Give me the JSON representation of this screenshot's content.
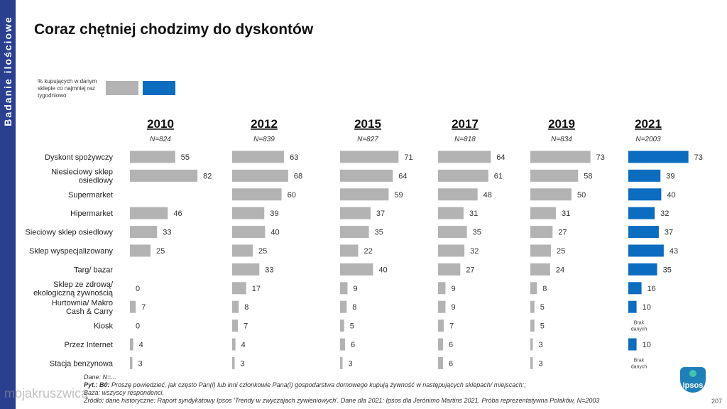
{
  "sidebar": {
    "label": "Badanie ilościowe"
  },
  "title": "Coraz chętniej chodzimy do dyskontów",
  "legend": {
    "text": "% kupujących w danym sklepie  co najmniej raz tygodniowo",
    "grey_color": "#b3b3b3",
    "blue_color": "#0b6cc0"
  },
  "footer": {
    "line1": "Dane: N=...",
    "line2_label": "Pyt.: B0:",
    "line2": " Proszę powiedzieć, jak często Pan(i) lub inni członkowie Pana(i) gospodarstwa domowego kupują żywność w następujących sklepach/ miejscach:;",
    "line3": "Baza: wszyscy respondenci,",
    "line4": "Źródło: dane historyczne: Raport syndykatowy Ipsos 'Trendy w zwyczajach żywieniowych'. Dane dla 2021: Ipsos dla Jerónimo Martins 2021. Próba reprezentatywna Polaków, N=2003"
  },
  "logo": "Ipsos",
  "page_number": "207",
  "watermark": "mojakruszwica",
  "chart_data": {
    "type": "bar",
    "title": "Coraz chętniej chodzimy do dyskontów",
    "ylabel": "% kupujących w danym sklepie  co najmniej raz tygodniowo",
    "categories": [
      "Dyskont spożywczy",
      "Niesieciowy sklep osiedlowy",
      "Supermarket",
      "Hipermarket",
      "Sieciowy sklep osiedlowy",
      "Sklep wyspecjalizowany",
      "Targ/ bazar",
      "Sklep ze zdrową/ ekologiczną żywnością",
      "Hurtownia/ Makro Cash & Carry",
      "Kiosk",
      "Przez Internet",
      "Stacja benzynowa"
    ],
    "missing_label": "Brak danych",
    "series": [
      {
        "name": "2010",
        "n": "N=824",
        "color": "#b3b3b3",
        "values": [
          55,
          82,
          null,
          46,
          33,
          25,
          null,
          0,
          7,
          0,
          4,
          3
        ]
      },
      {
        "name": "2012",
        "n": "N=839",
        "color": "#b3b3b3",
        "values": [
          63,
          68,
          60,
          39,
          40,
          25,
          33,
          17,
          8,
          7,
          4,
          3
        ]
      },
      {
        "name": "2015",
        "n": "N=827",
        "color": "#b3b3b3",
        "values": [
          71,
          64,
          59,
          37,
          35,
          22,
          40,
          9,
          8,
          5,
          6,
          3
        ]
      },
      {
        "name": "2017",
        "n": "N=818",
        "color": "#b3b3b3",
        "values": [
          64,
          61,
          48,
          31,
          35,
          32,
          27,
          9,
          9,
          7,
          6,
          6
        ]
      },
      {
        "name": "2019",
        "n": "N=834",
        "color": "#b3b3b3",
        "values": [
          73,
          58,
          50,
          31,
          27,
          25,
          24,
          8,
          5,
          5,
          3,
          3
        ]
      },
      {
        "name": "2021",
        "n": "N=2003",
        "color": "#0b6cc0",
        "values": [
          73,
          39,
          40,
          32,
          37,
          43,
          35,
          16,
          10,
          null,
          10,
          null
        ]
      }
    ]
  }
}
